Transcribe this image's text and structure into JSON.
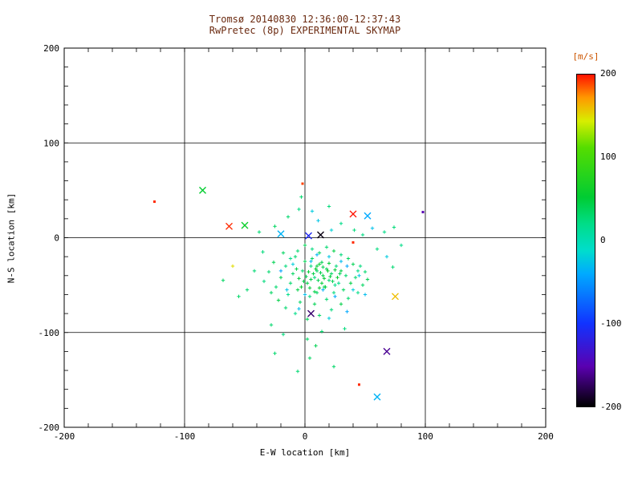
{
  "chart_data": {
    "type": "scatter",
    "title": "Tromsø 20140830 12:36:00-12:37:43",
    "subtitle": "RwPretec (8p) EXPERIMENTAL SKYMAP",
    "xlabel": "E-W location [km]",
    "ylabel": "N-S location [km]",
    "xlim": [
      -200,
      200
    ],
    "ylim": [
      -200,
      200
    ],
    "xticks": [
      -200,
      -100,
      0,
      100,
      200
    ],
    "yticks": [
      -200,
      -100,
      0,
      100,
      200
    ],
    "grid": [
      -100,
      0,
      100
    ],
    "grid_on": true,
    "colorbar": {
      "label": "[m/s]",
      "range": [
        -200,
        200
      ],
      "ticks": [
        200,
        100,
        0,
        -100,
        -200
      ],
      "stops": [
        [
          0.0,
          "#000000"
        ],
        [
          0.12,
          "#5a00b0"
        ],
        [
          0.25,
          "#1133ff"
        ],
        [
          0.4,
          "#00aaff"
        ],
        [
          0.47,
          "#00ddcc"
        ],
        [
          0.55,
          "#00dd88"
        ],
        [
          0.63,
          "#00cc33"
        ],
        [
          0.78,
          "#55dd00"
        ],
        [
          0.86,
          "#d8ee00"
        ],
        [
          0.93,
          "#ff9900"
        ],
        [
          1.0,
          "#ff1100"
        ]
      ]
    },
    "marker_legend": {
      "p": "small plus",
      "x": "large cross",
      "d": "dot"
    },
    "points": [
      [
        -125,
        38,
        195,
        "d"
      ],
      [
        -85,
        50,
        55,
        "x"
      ],
      [
        -63,
        12,
        195,
        "x"
      ],
      [
        -50,
        13,
        60,
        "x"
      ],
      [
        -2,
        57,
        190,
        "d"
      ],
      [
        -20,
        4,
        -35,
        "x"
      ],
      [
        3,
        2,
        -110,
        "x"
      ],
      [
        13,
        3,
        -195,
        "x"
      ],
      [
        40,
        25,
        200,
        "x"
      ],
      [
        52,
        23,
        -40,
        "x"
      ],
      [
        40,
        -5,
        195,
        "d"
      ],
      [
        98,
        27,
        -150,
        "d"
      ],
      [
        75,
        -62,
        160,
        "x"
      ],
      [
        5,
        -80,
        -170,
        "x"
      ],
      [
        68,
        -120,
        -160,
        "x"
      ],
      [
        45,
        -155,
        195,
        "d"
      ],
      [
        60,
        -168,
        -35,
        "x"
      ],
      [
        -60,
        -30,
        150
      ],
      [
        -8,
        -20,
        30
      ],
      [
        0,
        -25,
        40
      ],
      [
        5,
        -30,
        25
      ],
      [
        10,
        -35,
        35
      ],
      [
        15,
        -40,
        45
      ],
      [
        20,
        -45,
        30
      ],
      [
        25,
        -50,
        20
      ],
      [
        12,
        -28,
        55
      ],
      [
        18,
        -33,
        40
      ],
      [
        22,
        -38,
        35
      ],
      [
        8,
        -42,
        25
      ],
      [
        2,
        -48,
        45
      ],
      [
        -2,
        -35,
        30
      ],
      [
        6,
        -22,
        35
      ],
      [
        14,
        -26,
        40
      ],
      [
        26,
        -30,
        25
      ],
      [
        30,
        -35,
        45
      ],
      [
        34,
        -40,
        30
      ],
      [
        28,
        -48,
        20
      ],
      [
        16,
        -52,
        40
      ],
      [
        10,
        -58,
        35
      ],
      [
        4,
        -62,
        25
      ],
      [
        -6,
        -55,
        45
      ],
      [
        -12,
        -48,
        30
      ],
      [
        -10,
        -38,
        35
      ],
      [
        -16,
        -30,
        25
      ],
      [
        -20,
        -42,
        40
      ],
      [
        -24,
        -52,
        30
      ],
      [
        -14,
        -60,
        20
      ],
      [
        -4,
        -68,
        35
      ],
      [
        8,
        -70,
        40
      ],
      [
        18,
        -65,
        30
      ],
      [
        24,
        -58,
        25
      ],
      [
        32,
        -55,
        35
      ],
      [
        38,
        -48,
        45
      ],
      [
        42,
        -42,
        30
      ],
      [
        44,
        -35,
        20
      ],
      [
        40,
        -28,
        40
      ],
      [
        36,
        -22,
        35
      ],
      [
        30,
        -18,
        25
      ],
      [
        24,
        -14,
        45
      ],
      [
        18,
        -10,
        30
      ],
      [
        12,
        -16,
        35
      ],
      [
        6,
        -12,
        25
      ],
      [
        0,
        -8,
        40
      ],
      [
        -6,
        -14,
        30
      ],
      [
        -12,
        -22,
        20
      ],
      [
        -18,
        -16,
        35
      ],
      [
        -26,
        -26,
        40
      ],
      [
        -30,
        -36,
        30
      ],
      [
        -34,
        -46,
        25
      ],
      [
        -28,
        -58,
        35
      ],
      [
        -22,
        -66,
        45
      ],
      [
        -16,
        -74,
        30
      ],
      [
        -8,
        -80,
        20
      ],
      [
        2,
        -86,
        40
      ],
      [
        12,
        -82,
        35
      ],
      [
        22,
        -76,
        25
      ],
      [
        30,
        -70,
        45
      ],
      [
        36,
        -64,
        30
      ],
      [
        44,
        -58,
        20
      ],
      [
        48,
        -50,
        35
      ],
      [
        52,
        -44,
        40
      ],
      [
        50,
        -36,
        30
      ],
      [
        46,
        -30,
        25
      ],
      [
        10,
        -30,
        50
      ],
      [
        13,
        -37,
        45
      ],
      [
        16,
        -43,
        55
      ],
      [
        19,
        -35,
        60
      ],
      [
        21,
        -41,
        50
      ],
      [
        11,
        -45,
        40
      ],
      [
        7,
        -38,
        45
      ],
      [
        9,
        -33,
        55
      ],
      [
        14,
        -48,
        50
      ],
      [
        17,
        -52,
        45
      ],
      [
        23,
        -46,
        40
      ],
      [
        25,
        -34,
        50
      ],
      [
        27,
        -42,
        55
      ],
      [
        5,
        -44,
        45
      ],
      [
        3,
        -36,
        50
      ],
      [
        1,
        -41,
        40
      ],
      [
        -1,
        -46,
        45
      ],
      [
        -3,
        -52,
        55
      ],
      [
        -5,
        -43,
        50
      ],
      [
        -7,
        -33,
        45
      ],
      [
        15,
        -31,
        40
      ],
      [
        20,
        -27,
        50
      ],
      [
        12,
        -53,
        55
      ],
      [
        8,
        -57,
        45
      ],
      [
        4,
        -53,
        50
      ],
      [
        29,
        -38,
        40
      ],
      [
        -10,
        -28,
        -20
      ],
      [
        5,
        -25,
        -30
      ],
      [
        20,
        -20,
        -25
      ],
      [
        35,
        -30,
        -40
      ],
      [
        15,
        -55,
        -35
      ],
      [
        0,
        -60,
        -30
      ],
      [
        -15,
        -55,
        -25
      ],
      [
        25,
        -62,
        -40
      ],
      [
        40,
        -55,
        -20
      ],
      [
        10,
        -18,
        -35
      ],
      [
        30,
        -25,
        -30
      ],
      [
        -20,
        -35,
        -45
      ],
      [
        45,
        -40,
        -25
      ],
      [
        -5,
        -75,
        -30
      ],
      [
        20,
        -85,
        -20
      ],
      [
        35,
        -78,
        -40
      ],
      [
        50,
        -60,
        -30
      ],
      [
        -48,
        -55,
        30
      ],
      [
        -35,
        -15,
        25
      ],
      [
        -68,
        -45,
        35
      ],
      [
        -42,
        -35,
        28
      ],
      [
        -55,
        -62,
        32
      ],
      [
        -28,
        -92,
        30
      ],
      [
        -18,
        -102,
        25
      ],
      [
        2,
        -107,
        35
      ],
      [
        14,
        -99,
        30
      ],
      [
        33,
        -96,
        25
      ],
      [
        9,
        -114,
        40
      ],
      [
        -25,
        -122,
        30
      ],
      [
        4,
        -127,
        35
      ],
      [
        -6,
        -141,
        28
      ],
      [
        24,
        -136,
        32
      ],
      [
        -5,
        30,
        22
      ],
      [
        6,
        28,
        -22
      ],
      [
        20,
        33,
        26
      ],
      [
        -14,
        22,
        30
      ],
      [
        11,
        18,
        -25
      ],
      [
        30,
        15,
        20
      ],
      [
        -25,
        12,
        34
      ],
      [
        41,
        8,
        24
      ],
      [
        56,
        10,
        -28
      ],
      [
        66,
        6,
        20
      ],
      [
        74,
        11,
        26
      ],
      [
        -3,
        43,
        30
      ],
      [
        -38,
        6,
        28
      ],
      [
        22,
        8,
        -18
      ],
      [
        48,
        3,
        22
      ],
      [
        60,
        -12,
        24
      ],
      [
        68,
        -20,
        -22
      ],
      [
        73,
        -31,
        28
      ],
      [
        80,
        -8,
        20
      ]
    ]
  },
  "colors": {
    "background": "#ffffff",
    "axis": "#000000",
    "title_text": "#6b2a10",
    "unit_label": "#cc5500"
  }
}
